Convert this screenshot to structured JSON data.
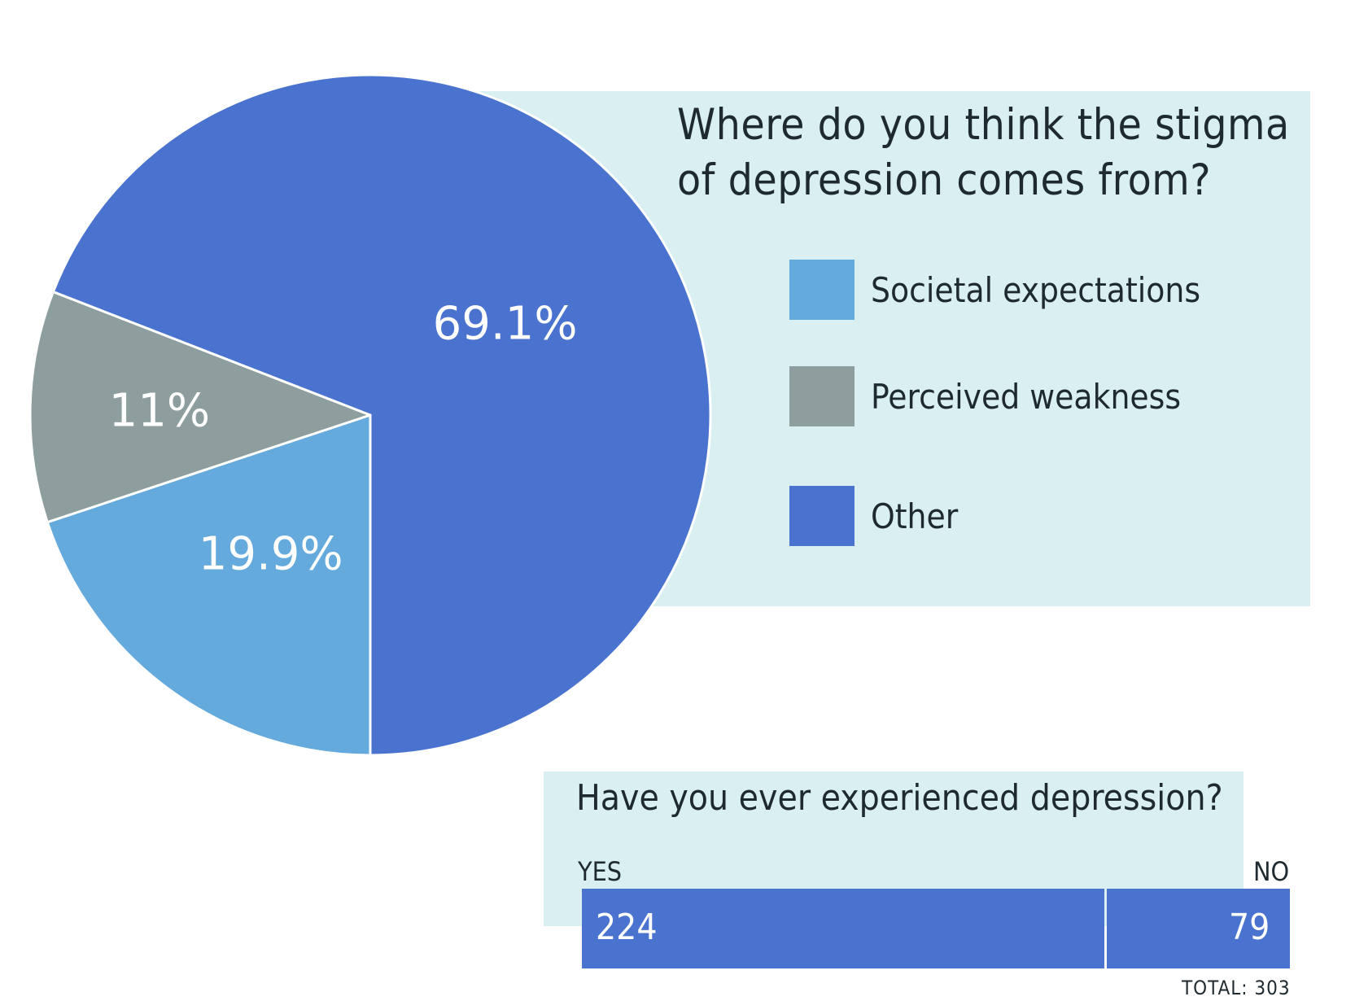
{
  "chart_data": [
    {
      "type": "pie",
      "title": "Where do you think the stigma of depression comes from?",
      "legend_position": "right",
      "slices": [
        {
          "label": "Societal expectations",
          "value": 19.9,
          "display": "19.9%",
          "color": "#64aadd"
        },
        {
          "label": "Perceived weakness",
          "value": 11,
          "display": "11%",
          "color": "#8e9e9e"
        },
        {
          "label": "Other",
          "value": 69.1,
          "display": "69.1%",
          "color": "#4a72cf"
        }
      ]
    },
    {
      "type": "bar",
      "orientation": "horizontal-stacked",
      "title": "Have you ever experienced depression?",
      "categories": [
        "YES",
        "NO"
      ],
      "values": [
        224,
        79
      ],
      "total_label": "TOTAL: 303",
      "color": "#4a72cf"
    }
  ]
}
